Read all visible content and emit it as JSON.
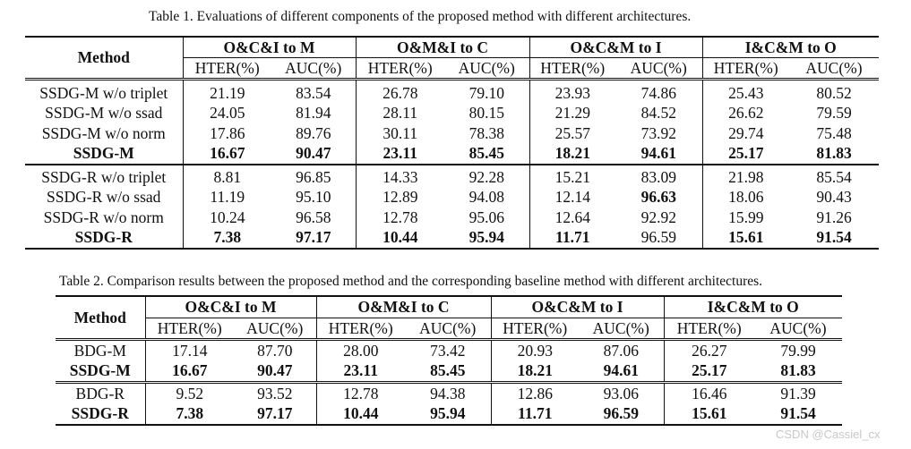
{
  "table1": {
    "caption": "Table 1. Evaluations of different components of the proposed method with different architectures.",
    "method_header": "Method",
    "groups": [
      "O&C&I to M",
      "O&M&I to C",
      "O&C&M to I",
      "I&C&M to O"
    ],
    "metric_headers": [
      "HTER(%)",
      "AUC(%)",
      "HTER(%)",
      "AUC(%)",
      "HTER(%)",
      "AUC(%)",
      "HTER(%)",
      "AUC(%)"
    ],
    "group_m": [
      {
        "method": "SSDG-M w/o triplet",
        "values": [
          "21.19",
          "83.54",
          "26.78",
          "79.10",
          "23.93",
          "74.86",
          "25.43",
          "80.52"
        ]
      },
      {
        "method": "SSDG-M w/o ssad",
        "values": [
          "24.05",
          "81.94",
          "28.11",
          "80.15",
          "21.29",
          "84.52",
          "26.62",
          "79.59"
        ]
      },
      {
        "method": "SSDG-M w/o norm",
        "values": [
          "17.86",
          "89.76",
          "30.11",
          "78.38",
          "25.57",
          "73.92",
          "29.74",
          "75.48"
        ]
      },
      {
        "method": "SSDG-M",
        "values": [
          "16.67",
          "90.47",
          "23.11",
          "85.45",
          "18.21",
          "94.61",
          "25.17",
          "81.83"
        ]
      }
    ],
    "group_r": [
      {
        "method": "SSDG-R w/o triplet",
        "values": [
          "8.81",
          "96.85",
          "14.33",
          "92.28",
          "15.21",
          "83.09",
          "21.98",
          "85.54"
        ]
      },
      {
        "method": "SSDG-R w/o ssad",
        "values": [
          "11.19",
          "95.10",
          "12.89",
          "94.08",
          "12.14",
          "96.63",
          "18.06",
          "90.43"
        ]
      },
      {
        "method": "SSDG-R w/o norm",
        "values": [
          "10.24",
          "96.58",
          "12.78",
          "95.06",
          "12.64",
          "92.92",
          "15.99",
          "91.26"
        ]
      },
      {
        "method": "SSDG-R",
        "values": [
          "7.38",
          "97.17",
          "10.44",
          "95.94",
          "11.71",
          "96.59",
          "15.61",
          "91.54"
        ]
      }
    ]
  },
  "table2": {
    "caption": "Table 2. Comparison results between the proposed method and the corresponding baseline method with different architectures.",
    "method_header": "Method",
    "groups": [
      "O&C&I to M",
      "O&M&I to C",
      "O&C&M to I",
      "I&C&M to O"
    ],
    "metric_headers": [
      "HTER(%)",
      "AUC(%)",
      "HTER(%)",
      "AUC(%)",
      "HTER(%)",
      "AUC(%)",
      "HTER(%)",
      "AUC(%)"
    ],
    "group_m": [
      {
        "method": "BDG-M",
        "values": [
          "17.14",
          "87.70",
          "28.00",
          "73.42",
          "20.93",
          "87.06",
          "26.27",
          "79.99"
        ]
      },
      {
        "method": "SSDG-M",
        "values": [
          "16.67",
          "90.47",
          "23.11",
          "85.45",
          "18.21",
          "94.61",
          "25.17",
          "81.83"
        ]
      }
    ],
    "group_r": [
      {
        "method": "BDG-R",
        "values": [
          "9.52",
          "93.52",
          "12.78",
          "94.38",
          "12.86",
          "93.06",
          "16.46",
          "91.39"
        ]
      },
      {
        "method": "SSDG-R",
        "values": [
          "7.38",
          "97.17",
          "10.44",
          "95.94",
          "11.71",
          "96.59",
          "15.61",
          "91.54"
        ]
      }
    ]
  },
  "watermark": "CSDN @Cassiel_cx"
}
